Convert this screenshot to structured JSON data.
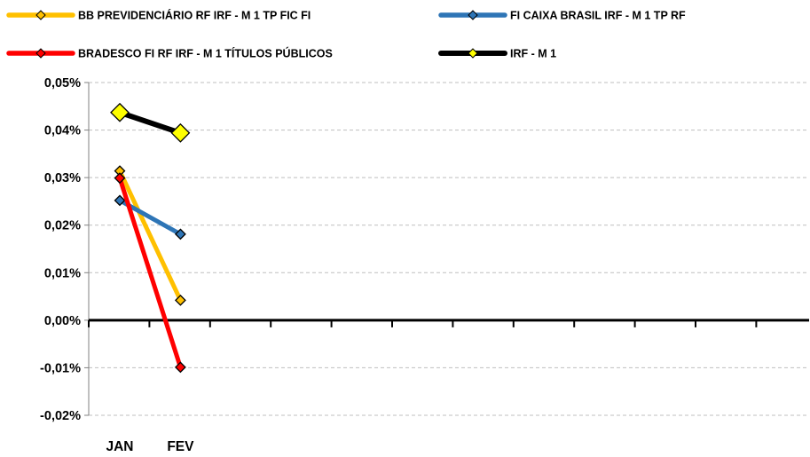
{
  "chart_data": {
    "type": "line",
    "categories": [
      "JAN",
      "FEV"
    ],
    "series": [
      {
        "name": "BB PREVIDENCIÁRIO RF IRF - M 1 TP FIC FI",
        "color": "#FFC000",
        "values": [
          0.0314,
          0.0042
        ]
      },
      {
        "name": "FI CAIXA BRASIL IRF - M 1 TP RF",
        "color": "#2E75B6",
        "values": [
          0.0252,
          0.0181
        ]
      },
      {
        "name": "BRADESCO FI RF IRF - M 1 TÍTULOS PÚBLICOS",
        "color": "#FF0000",
        "values": [
          0.0299,
          -0.0099
        ]
      },
      {
        "name": "IRF - M 1",
        "color": "#000000",
        "marker_color": "#FFFF00",
        "values": [
          0.0437,
          0.0394
        ]
      }
    ],
    "yticks": [
      "0,05%",
      "0,04%",
      "0,03%",
      "0,02%",
      "0,01%",
      "0,00%",
      "-0,01%",
      "-0,02%"
    ],
    "ylim": [
      -0.02,
      0.05
    ],
    "title": "",
    "xlabel": "",
    "ylabel": "",
    "grid": true,
    "legend_position": "top"
  }
}
